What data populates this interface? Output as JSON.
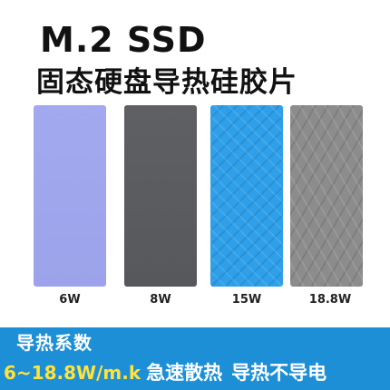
{
  "header": {
    "title": "M.2 SSD",
    "subtitle": "固态硬盘导热硅胶片"
  },
  "pads": [
    {
      "label": "6W",
      "color": "#a0a6ec"
    },
    {
      "label": "8W",
      "color": "#5a5c60"
    },
    {
      "label": "15W",
      "color": "#2e9fe8"
    },
    {
      "label": "18.8W",
      "color": "#8c8c8c"
    }
  ],
  "footer": {
    "heading": "导热系数",
    "coefficient": "6~18.8W/m.k",
    "slogan_1": "急速散热",
    "slogan_2": "导热不导电",
    "bar_color": "#1c8fd6",
    "coefficient_color": "#ffe23a"
  }
}
